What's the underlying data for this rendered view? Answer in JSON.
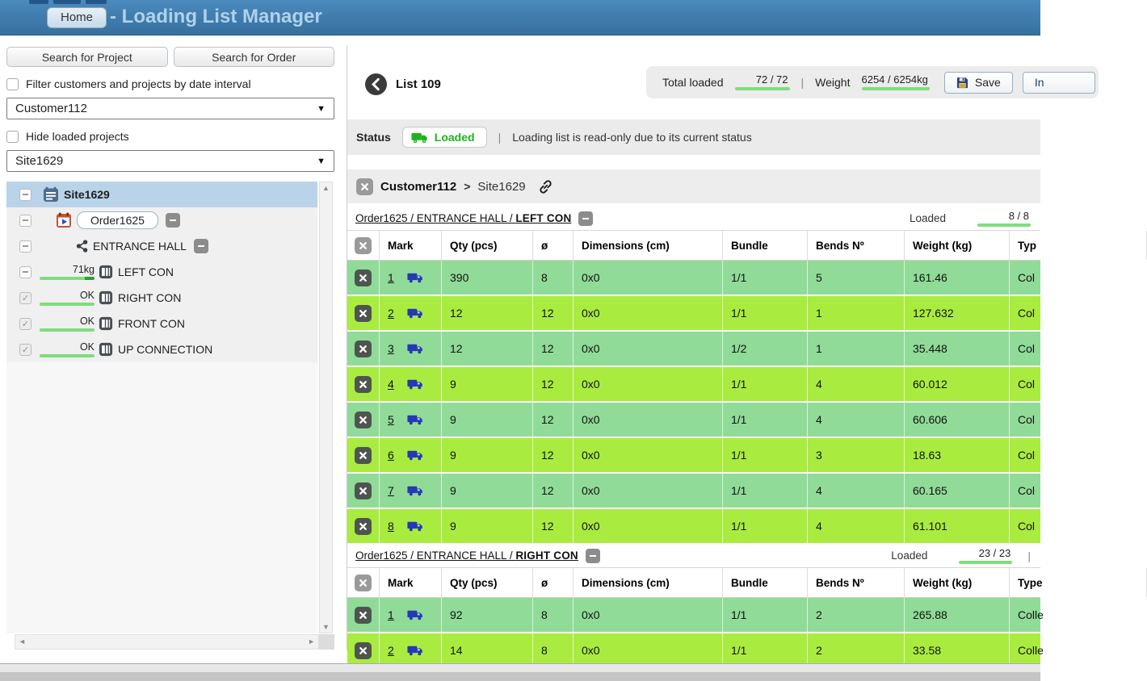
{
  "colors": {
    "header_blue": "#4a8abc",
    "accent_green": "#1db31d",
    "progress_green": "#7edd7e",
    "row_green_light": "#90db97",
    "row_green_bright": "#a9ec3f",
    "selected_tree_row": "#b9d3e9"
  },
  "header": {
    "home_label": "Home",
    "title": "- Loading List Manager"
  },
  "sidebar": {
    "search_project_label": "Search for Project",
    "search_order_label": "Search for Order",
    "filter_checkbox_label": "Filter customers and projects by date interval",
    "customer_select_value": "Customer112",
    "hide_loaded_label": "Hide loaded projects",
    "site_select_value": "Site1629",
    "tree": [
      {
        "type": "site",
        "label": "Site1629",
        "checkbox": "dash",
        "selected": true
      },
      {
        "type": "order",
        "label": "Order1625",
        "checkbox": "dash",
        "badge": true
      },
      {
        "type": "group",
        "label": "ENTRANCE HALL",
        "checkbox": "dash",
        "badge": true
      },
      {
        "type": "container",
        "label": "LEFT CON",
        "checkbox": "dash",
        "status": "71kg",
        "bar": "tip"
      },
      {
        "type": "container",
        "label": "RIGHT CON",
        "checkbox": "checked",
        "status": "OK",
        "bar": "full"
      },
      {
        "type": "container",
        "label": "FRONT CON",
        "checkbox": "checked",
        "status": "OK",
        "bar": "full"
      },
      {
        "type": "container",
        "label": "UP CONNECTION",
        "checkbox": "checked",
        "status": "OK",
        "bar": "full"
      }
    ]
  },
  "main": {
    "list_title": "List 109",
    "totals": {
      "total_loaded_label": "Total loaded",
      "total_loaded_value": "72 / 72",
      "separator": "|",
      "weight_label": "Weight",
      "weight_value": "6254 / 6254kg",
      "save_label": "Save",
      "invoice_label": "In"
    },
    "status": {
      "label": "Status",
      "badge_label": "Loaded",
      "separator": "|",
      "message": "Loading list is read-only due to its current status"
    },
    "breadcrumb": {
      "customer": "Customer112",
      "chevron": ">",
      "site": "Site1629"
    },
    "sections": [
      {
        "link_prefix": "Order1625 / ENTRANCE HALL / ",
        "link_bold": "LEFT CON",
        "loaded_label": "Loaded",
        "loaded_value": "8 / 8",
        "pipe_after": "",
        "columns": [
          "Mark",
          "Qty (pcs)",
          "ø",
          "Dimensions (cm)",
          "Bundle",
          "Bends Nº",
          "Weight (kg)",
          "Typ"
        ],
        "rows": [
          {
            "mark": "1",
            "qty": "390",
            "dia": "8",
            "dims": "0x0",
            "bundle": "1/1",
            "bends": "5",
            "weight": "161.46",
            "type": "Col"
          },
          {
            "mark": "2",
            "qty": "12",
            "dia": "12",
            "dims": "0x0",
            "bundle": "1/1",
            "bends": "1",
            "weight": "127.632",
            "type": "Col"
          },
          {
            "mark": "3",
            "qty": "12",
            "dia": "12",
            "dims": "0x0",
            "bundle": "1/2",
            "bends": "1",
            "weight": "35.448",
            "type": "Col"
          },
          {
            "mark": "4",
            "qty": "9",
            "dia": "12",
            "dims": "0x0",
            "bundle": "1/1",
            "bends": "4",
            "weight": "60.012",
            "type": "Col"
          },
          {
            "mark": "5",
            "qty": "9",
            "dia": "12",
            "dims": "0x0",
            "bundle": "1/1",
            "bends": "4",
            "weight": "60.606",
            "type": "Col"
          },
          {
            "mark": "6",
            "qty": "9",
            "dia": "12",
            "dims": "0x0",
            "bundle": "1/1",
            "bends": "3",
            "weight": "18.63",
            "type": "Col"
          },
          {
            "mark": "7",
            "qty": "9",
            "dia": "12",
            "dims": "0x0",
            "bundle": "1/1",
            "bends": "4",
            "weight": "60.165",
            "type": "Col"
          },
          {
            "mark": "8",
            "qty": "9",
            "dia": "12",
            "dims": "0x0",
            "bundle": "1/1",
            "bends": "4",
            "weight": "61.101",
            "type": "Col"
          }
        ]
      },
      {
        "link_prefix": "Order1625 / ENTRANCE HALL / ",
        "link_bold": "RIGHT CON",
        "loaded_label": "Loaded",
        "loaded_value": "23 / 23",
        "pipe_after": "|",
        "columns": [
          "Mark",
          "Qty (pcs)",
          "ø",
          "Dimensions (cm)",
          "Bundle",
          "Bends Nº",
          "Weight (kg)",
          "Type"
        ],
        "rows": [
          {
            "mark": "1",
            "qty": "92",
            "dia": "8",
            "dims": "0x0",
            "bundle": "1/1",
            "bends": "2",
            "weight": "265.88",
            "type": "Colle"
          },
          {
            "mark": "2",
            "qty": "14",
            "dia": "8",
            "dims": "0x0",
            "bundle": "1/1",
            "bends": "2",
            "weight": "33.58",
            "type": "Colle"
          }
        ]
      }
    ]
  }
}
